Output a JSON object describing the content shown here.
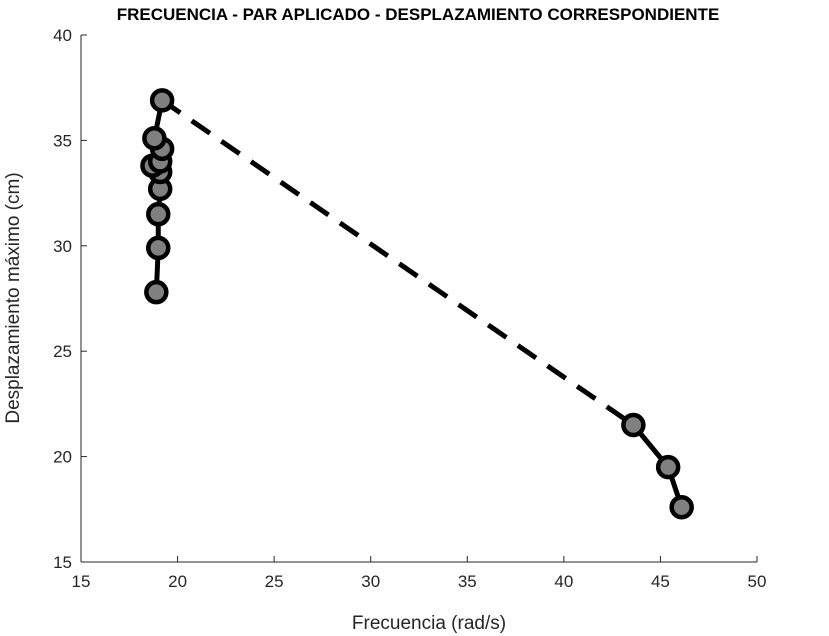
{
  "chart_data": {
    "type": "line",
    "title": "FRECUENCIA - PAR APLICADO - DESPLAZAMIENTO CORRESPONDIENTE",
    "xlabel": "Frecuencia (rad/s)",
    "ylabel": "Desplazamiento máximo (cm)",
    "xlim": [
      15,
      50
    ],
    "ylim": [
      15,
      40
    ],
    "xticks": [
      15,
      20,
      25,
      30,
      35,
      40,
      45,
      50
    ],
    "yticks": [
      15,
      20,
      25,
      30,
      35,
      40
    ],
    "grid": false,
    "points": [
      {
        "x": 18.9,
        "y": 27.8
      },
      {
        "x": 19.0,
        "y": 29.9
      },
      {
        "x": 19.0,
        "y": 31.5
      },
      {
        "x": 19.1,
        "y": 32.7
      },
      {
        "x": 19.1,
        "y": 33.5
      },
      {
        "x": 18.7,
        "y": 33.8
      },
      {
        "x": 19.1,
        "y": 34.0
      },
      {
        "x": 19.2,
        "y": 34.6
      },
      {
        "x": 18.8,
        "y": 35.1
      },
      {
        "x": 19.2,
        "y": 36.9
      },
      {
        "x": 43.6,
        "y": 21.5
      },
      {
        "x": 45.4,
        "y": 19.5
      },
      {
        "x": 46.1,
        "y": 17.6
      }
    ],
    "segments": [
      {
        "style": "solid",
        "from": 0,
        "to": 9
      },
      {
        "style": "dashed",
        "from": 9,
        "to": 10
      },
      {
        "style": "solid",
        "from": 10,
        "to": 12
      }
    ],
    "colors": {
      "line": "#000000",
      "marker_fill": "#808080",
      "axis": "#262626"
    }
  }
}
